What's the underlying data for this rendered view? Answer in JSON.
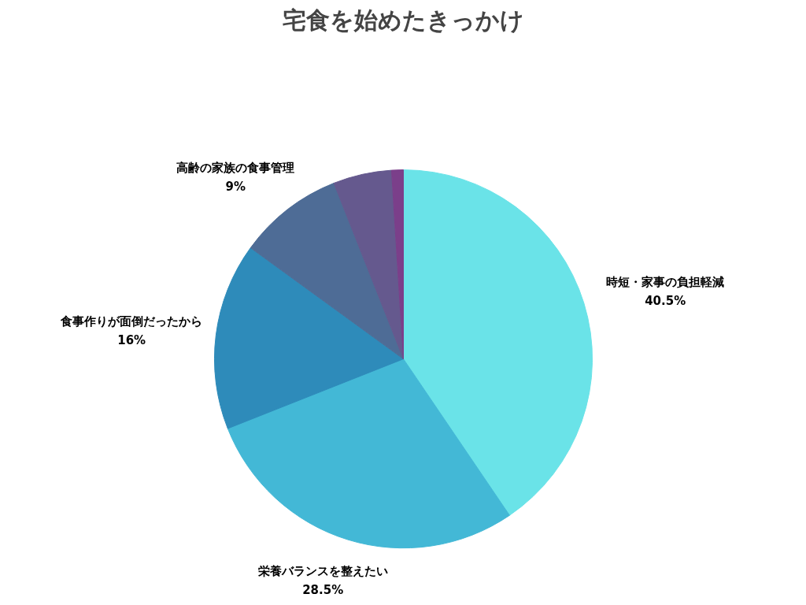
{
  "chart_data": {
    "type": "pie",
    "title": "宅食を始めたきっかけ",
    "categories": [
      "時短・家事の負担軽減",
      "栄養バランスを整えたい",
      "食事作りが面倒だったから",
      "高齢の家族の食事管理",
      null,
      null
    ],
    "values": [
      40.5,
      28.5,
      16,
      9,
      5,
      1
    ],
    "value_labels": [
      "40.5%",
      "28.5%",
      "16%",
      "9%",
      null,
      null
    ],
    "colors": [
      "#6ae3e8",
      "#43b8d6",
      "#2e8bba",
      "#4e6c96",
      "#65598e",
      "#7b3f8a"
    ]
  }
}
